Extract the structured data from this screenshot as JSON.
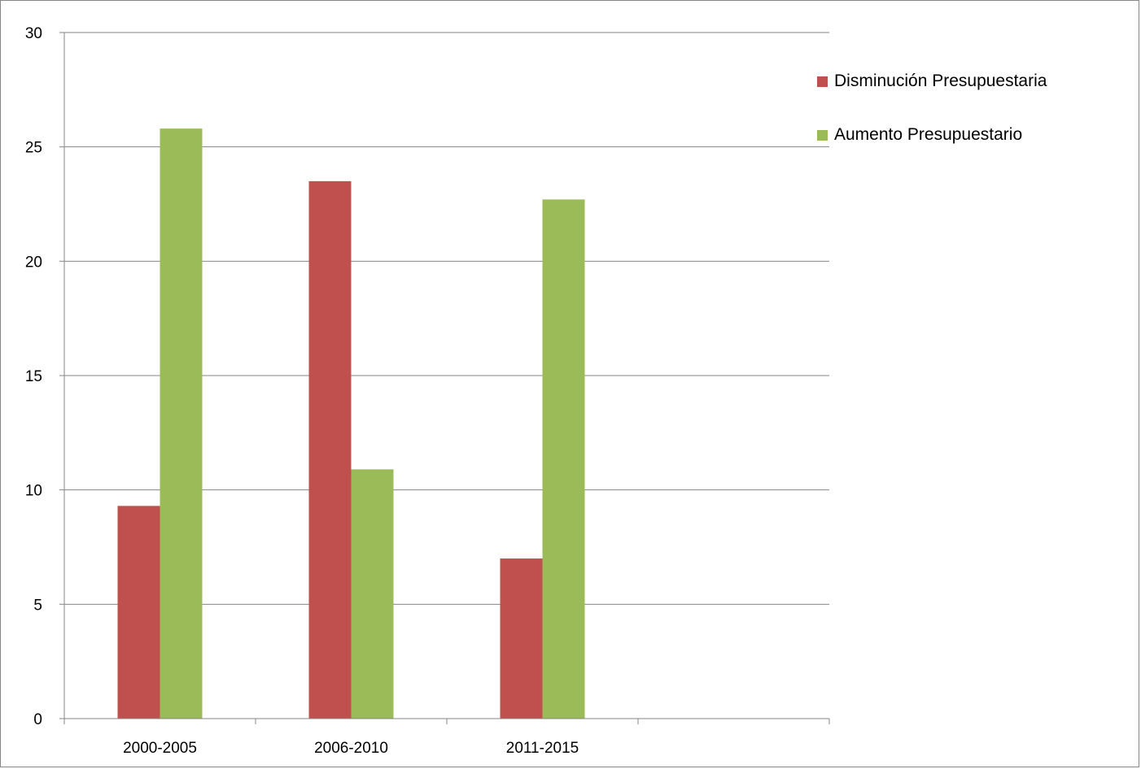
{
  "chart_data": {
    "type": "bar",
    "categories": [
      "2000-2005",
      "2006-2010",
      "2011-2015",
      ""
    ],
    "series": [
      {
        "name": "Disminución Presupuestaria",
        "color": "#C0504D",
        "values": [
          9.3,
          23.5,
          7.0,
          null
        ]
      },
      {
        "name": "Aumento Presupuestario",
        "color": "#9BBB59",
        "values": [
          25.8,
          10.9,
          22.7,
          null
        ]
      }
    ],
    "ylim": [
      0,
      30
    ],
    "yticks": [
      0,
      5,
      10,
      15,
      20,
      25,
      30
    ],
    "grid": true,
    "legend_position": "right",
    "title": "",
    "xlabel": "",
    "ylabel": ""
  }
}
